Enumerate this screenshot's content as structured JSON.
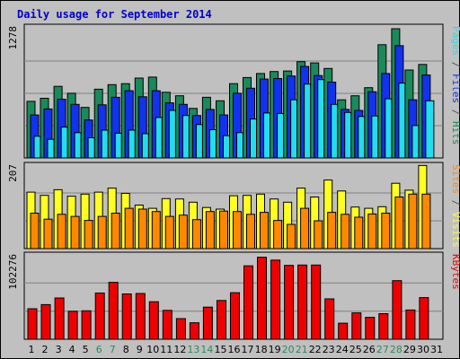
{
  "title": "Daily usage for September 2014",
  "colors": {
    "hits": "#1a8a5a",
    "files": "#1133ee",
    "pages": "#22ddee",
    "visits": "#ffff22",
    "sites": "#ff8800",
    "kbytes": "#ee0000",
    "weekend_label": "#2a8a5a",
    "weekday_label": "#000000",
    "title": "#0000cc"
  },
  "chart_data": [
    {
      "type": "bar",
      "panel": "hits-files-pages",
      "ymax_label": "1278",
      "ylim": [
        0,
        1278
      ],
      "right_label": [
        {
          "text": "Pages",
          "color_key": "pages"
        },
        {
          "text": " / ",
          "color_key": "sep"
        },
        {
          "text": "Files",
          "color_key": "files"
        },
        {
          "text": " / ",
          "color_key": "sep"
        },
        {
          "text": "Hits",
          "color_key": "hits"
        }
      ],
      "categories": [
        "1",
        "2",
        "3",
        "4",
        "5",
        "6",
        "7",
        "8",
        "9",
        "10",
        "11",
        "12",
        "13",
        "14",
        "15",
        "16",
        "17",
        "18",
        "19",
        "20",
        "21",
        "22",
        "23",
        "24",
        "25",
        "26",
        "27",
        "28",
        "29",
        "30",
        "31"
      ],
      "series": [
        {
          "name": "Hits",
          "values": [
            560,
            590,
            708,
            640,
            500,
            680,
            725,
            735,
            790,
            800,
            650,
            615,
            490,
            600,
            565,
            735,
            795,
            835,
            855,
            860,
            952,
            940,
            885,
            575,
            615,
            695,
            1120,
            1278,
            870,
            925,
            0
          ]
        },
        {
          "name": "Files",
          "values": [
            425,
            485,
            580,
            530,
            375,
            525,
            600,
            665,
            605,
            665,
            545,
            530,
            420,
            480,
            425,
            640,
            690,
            780,
            785,
            810,
            905,
            815,
            750,
            480,
            470,
            655,
            835,
            1110,
            575,
            820,
            0
          ]
        },
        {
          "name": "Pages",
          "values": [
            215,
            185,
            305,
            250,
            200,
            275,
            245,
            275,
            240,
            400,
            470,
            420,
            330,
            280,
            220,
            250,
            385,
            445,
            440,
            575,
            730,
            775,
            530,
            450,
            410,
            415,
            585,
            740,
            320,
            565,
            0
          ]
        }
      ]
    },
    {
      "type": "bar",
      "panel": "visits-sites",
      "ymax_label": "207",
      "ylim": [
        0,
        207
      ],
      "right_label": [
        {
          "text": "Sites",
          "color_key": "sites"
        },
        {
          "text": " / ",
          "color_key": "sep"
        },
        {
          "text": "Visits",
          "color_key": "visits"
        }
      ],
      "categories": [
        "1",
        "2",
        "3",
        "4",
        "5",
        "6",
        "7",
        "8",
        "9",
        "10",
        "11",
        "12",
        "13",
        "14",
        "15",
        "16",
        "17",
        "18",
        "19",
        "20",
        "21",
        "22",
        "23",
        "24",
        "25",
        "26",
        "27",
        "28",
        "29",
        "30",
        "31"
      ],
      "series": [
        {
          "name": "Visits",
          "values": [
            140,
            132,
            146,
            130,
            135,
            140,
            150,
            137,
            108,
            100,
            124,
            123,
            115,
            102,
            98,
            131,
            132,
            135,
            123,
            115,
            150,
            128,
            170,
            143,
            103,
            100,
            104,
            162,
            145,
            206,
            0
          ]
        },
        {
          "name": "Sites",
          "values": [
            88,
            73,
            85,
            80,
            70,
            80,
            88,
            100,
            98,
            92,
            80,
            83,
            72,
            92,
            93,
            92,
            85,
            90,
            70,
            60,
            100,
            69,
            90,
            85,
            78,
            86,
            88,
            128,
            135,
            135,
            0
          ]
        }
      ]
    },
    {
      "type": "bar",
      "panel": "kbytes",
      "ymax_label": "102276",
      "ylim": [
        0,
        102276
      ],
      "right_label": [
        {
          "text": "KBytes",
          "color_key": "kbytes"
        }
      ],
      "categories": [
        "1",
        "2",
        "3",
        "4",
        "5",
        "6",
        "7",
        "8",
        "9",
        "10",
        "11",
        "12",
        "13",
        "14",
        "15",
        "16",
        "17",
        "18",
        "19",
        "20",
        "21",
        "22",
        "23",
        "24",
        "25",
        "26",
        "27",
        "28",
        "29",
        "30",
        "31"
      ],
      "series": [
        {
          "name": "KBytes",
          "values": [
            37000,
            42000,
            50000,
            34000,
            34500,
            56000,
            69000,
            55000,
            55500,
            45500,
            35000,
            25000,
            20000,
            39000,
            47000,
            56500,
            89000,
            99500,
            96000,
            89500,
            90000,
            90000,
            49000,
            19500,
            32000,
            26500,
            31000,
            71000,
            35500,
            50500,
            0
          ]
        }
      ]
    }
  ],
  "x_labels": [
    {
      "text": "1",
      "weekend": false
    },
    {
      "text": "2",
      "weekend": false
    },
    {
      "text": "3",
      "weekend": false
    },
    {
      "text": "4",
      "weekend": false
    },
    {
      "text": "5",
      "weekend": false
    },
    {
      "text": "6",
      "weekend": true
    },
    {
      "text": "7",
      "weekend": true
    },
    {
      "text": "8",
      "weekend": false
    },
    {
      "text": "9",
      "weekend": false
    },
    {
      "text": "10",
      "weekend": false
    },
    {
      "text": "11",
      "weekend": false
    },
    {
      "text": "12",
      "weekend": false
    },
    {
      "text": "13",
      "weekend": true
    },
    {
      "text": "14",
      "weekend": true
    },
    {
      "text": "15",
      "weekend": false
    },
    {
      "text": "16",
      "weekend": false
    },
    {
      "text": "17",
      "weekend": false
    },
    {
      "text": "18",
      "weekend": false
    },
    {
      "text": "19",
      "weekend": false
    },
    {
      "text": "20",
      "weekend": true
    },
    {
      "text": "21",
      "weekend": true
    },
    {
      "text": "22",
      "weekend": false
    },
    {
      "text": "23",
      "weekend": false
    },
    {
      "text": "24",
      "weekend": false
    },
    {
      "text": "25",
      "weekend": false
    },
    {
      "text": "26",
      "weekend": false
    },
    {
      "text": "27",
      "weekend": true
    },
    {
      "text": "28",
      "weekend": true
    },
    {
      "text": "29",
      "weekend": false
    },
    {
      "text": "30",
      "weekend": false
    },
    {
      "text": "31",
      "weekend": false
    }
  ]
}
